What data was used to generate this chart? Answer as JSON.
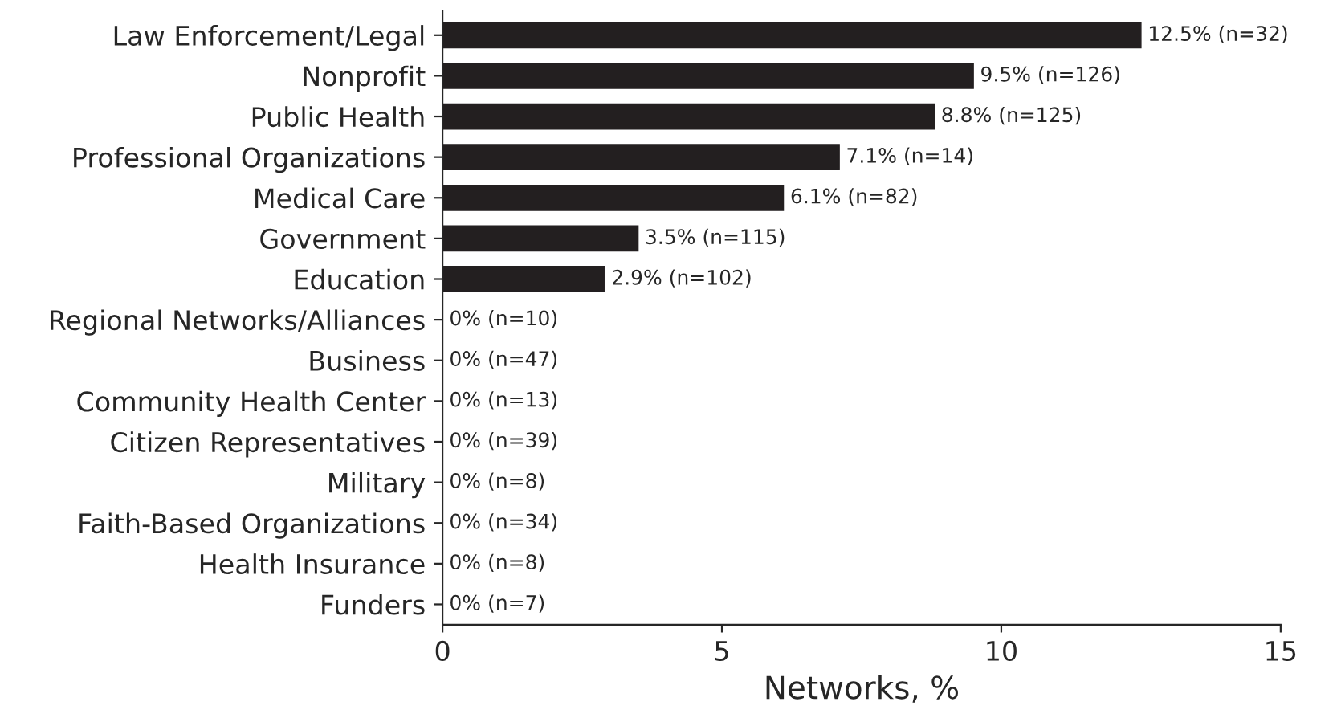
{
  "chart_data": {
    "type": "bar",
    "orientation": "horizontal",
    "xlabel": "Networks, %",
    "categories": [
      "Law Enforcement/Legal",
      "Nonprofit",
      "Public Health",
      "Professional Organizations",
      "Medical Care",
      "Government",
      "Education",
      "Regional Networks/Alliances",
      "Business",
      "Community Health Center",
      "Citizen Representatives",
      "Military",
      "Faith-Based Organizations",
      "Health Insurance",
      "Funders"
    ],
    "values": [
      12.5,
      9.5,
      8.8,
      7.1,
      6.1,
      3.5,
      2.9,
      0,
      0,
      0,
      0,
      0,
      0,
      0,
      0
    ],
    "value_labels": [
      "12.5% (n=32)",
      "9.5% (n=126)",
      "8.8% (n=125)",
      "7.1% (n=14)",
      "6.1% (n=82)",
      "3.5% (n=115)",
      "2.9% (n=102)",
      "0% (n=10)",
      "0% (n=47)",
      "0% (n=13)",
      "0% (n=39)",
      "0% (n=8)",
      "0% (n=34)",
      "0% (n=8)",
      "0% (n=7)"
    ],
    "color": "#231f20",
    "xlim": [
      0,
      15
    ],
    "xticks": [
      0,
      5,
      10,
      15
    ],
    "grid": false,
    "legend": false
  }
}
